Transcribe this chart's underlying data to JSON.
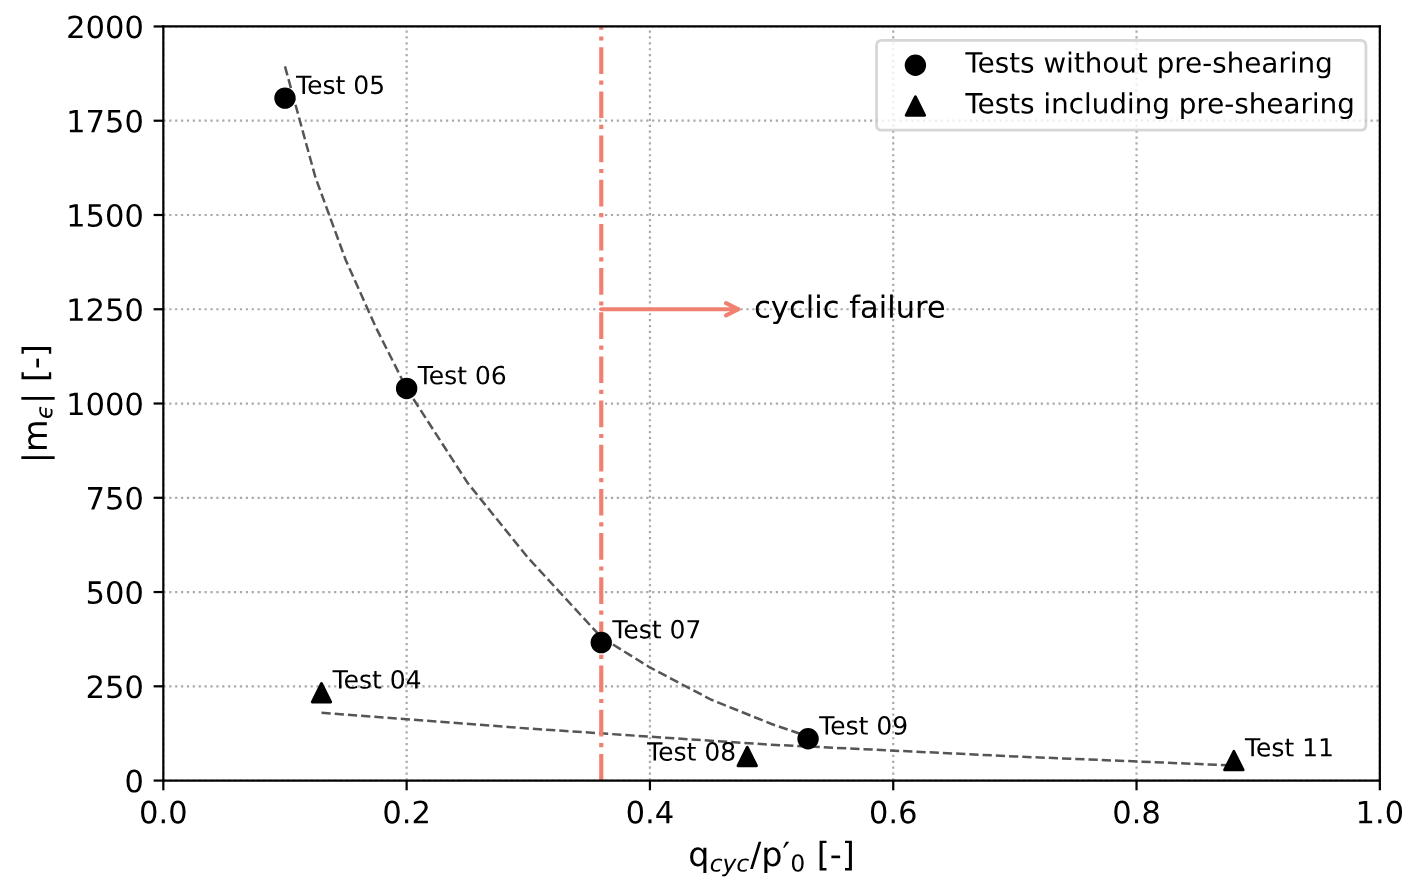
{
  "chart_data": {
    "type": "scatter",
    "xlabel": "q$_{cyc}$/p′$_{0}$ [-]",
    "ylabel": "|m$_{ϵ}$| [-]",
    "xlim": [
      0.0,
      1.0
    ],
    "xticks": [
      {
        "value": 0.0,
        "label": "0.0"
      },
      0.2,
      0.4,
      0.6,
      0.8,
      {
        "value": 1.0,
        "label": "1.0"
      }
    ],
    "ylim": [
      0,
      2000
    ],
    "yticks": [
      0,
      250,
      500,
      750,
      1000,
      1250,
      1500,
      1750,
      2000
    ],
    "grid": true,
    "legend": "top right",
    "series": [
      {
        "name": "Tests without pre-shearing",
        "marker": "circle",
        "color": "#000000",
        "x": [
          0.1,
          0.2,
          0.36,
          0.53
        ],
        "values": [
          1810,
          1040,
          366,
          111
        ]
      },
      {
        "name": "Tests including pre-shearing",
        "marker": "triangle",
        "color": "#000000",
        "x": [
          0.13,
          0.48,
          0.88
        ],
        "values": [
          233,
          64,
          53
        ]
      },
      {
        "type": "line",
        "line_style": "dashed",
        "color": "#555555",
        "x": [
          0.1,
          0.125,
          0.15,
          0.175,
          0.2,
          0.25,
          0.3,
          0.36,
          0.4,
          0.45,
          0.5,
          0.53
        ],
        "values": [
          1894,
          1600,
          1380,
          1200,
          1040,
          790,
          590,
          380,
          300,
          215,
          150,
          117
        ]
      },
      {
        "type": "line",
        "line_style": "dashed",
        "color": "#555555",
        "x": [
          0.13,
          0.3,
          0.5,
          0.7,
          0.88
        ],
        "values": [
          180,
          138,
          95,
          64,
          40
        ]
      }
    ],
    "ref_lines": [
      {
        "axis": "x",
        "value": 0.36,
        "color": "#f08070",
        "line_style": "dashdot"
      }
    ],
    "annotations": [
      {
        "text": "Test 05",
        "x": 0.1,
        "y": 1810
      },
      {
        "text": "Test 06",
        "x": 0.2,
        "y": 1040
      },
      {
        "text": "Test 07",
        "x": 0.36,
        "y": 366
      },
      {
        "text": "Test 09",
        "x": 0.53,
        "y": 111
      },
      {
        "text": "Test 04",
        "x": 0.13,
        "y": 233
      },
      {
        "text": "Test 08",
        "x": 0.48,
        "y": 64
      },
      {
        "text": "Test 11",
        "x": 0.88,
        "y": 53
      },
      {
        "text": "cyclic failure",
        "x": 0.36,
        "y": 1250
      }
    ]
  }
}
